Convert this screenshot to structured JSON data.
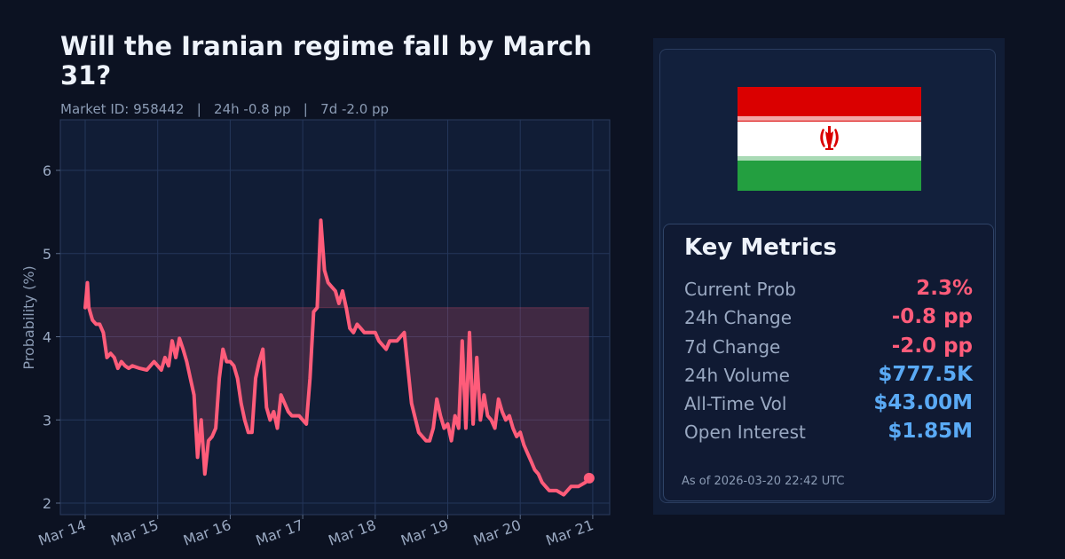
{
  "header": {
    "title": "Will the Iranian regime fall by March 31?",
    "subtitle": "Market ID: 958442   |   24h -0.8 pp   |   7d -2.0 pp"
  },
  "chart": {
    "ylabel": "Probability (%)",
    "yticks": [
      "2",
      "3",
      "4",
      "5",
      "6"
    ],
    "xticks": [
      "Mar 14",
      "Mar 15",
      "Mar 16",
      "Mar 17",
      "Mar 18",
      "Mar 19",
      "Mar 20",
      "Mar 21"
    ]
  },
  "metrics": {
    "title": "Key Metrics",
    "rows": [
      {
        "label": "Current Prob",
        "value": "2.3%",
        "color": "#ff5c7a"
      },
      {
        "label": "24h Change",
        "value": "-0.8 pp",
        "color": "#ff5c7a"
      },
      {
        "label": "7d Change",
        "value": "-2.0 pp",
        "color": "#ff5c7a"
      },
      {
        "label": "24h Volume",
        "value": "$777.5K",
        "color": "#5aaaf5"
      },
      {
        "label": "All-Time Vol",
        "value": "$43.00M",
        "color": "#5aaaf5"
      },
      {
        "label": "Open Interest",
        "value": "$1.85M",
        "color": "#5aaaf5"
      }
    ],
    "as_of": "As of 2026-03-20 22:42 UTC"
  },
  "flag": {
    "name": "Iran",
    "colors": [
      "#da0000",
      "#ffffff",
      "#239f40"
    ]
  },
  "chart_data": {
    "type": "line",
    "title": "Will the Iranian regime fall by March 31?",
    "xlabel": "",
    "ylabel": "Probability (%)",
    "ylim": [
      1.9,
      6.6
    ],
    "yticks": [
      2,
      3,
      4,
      5,
      6
    ],
    "xticks": [
      "Mar 14",
      "Mar 15",
      "Mar 16",
      "Mar 17",
      "Mar 18",
      "Mar 19",
      "Mar 20",
      "Mar 21"
    ],
    "grid": true,
    "reference_level": 4.35,
    "line_color": "#ff5c7a",
    "series": [
      {
        "name": "Probability",
        "x_days_from_mar14": [
          0.0,
          0.03,
          0.05,
          0.1,
          0.15,
          0.2,
          0.25,
          0.3,
          0.35,
          0.4,
          0.45,
          0.5,
          0.55,
          0.6,
          0.65,
          0.75,
          0.85,
          0.95,
          1.05,
          1.1,
          1.15,
          1.2,
          1.25,
          1.3,
          1.35,
          1.4,
          1.45,
          1.5,
          1.55,
          1.6,
          1.65,
          1.7,
          1.75,
          1.8,
          1.85,
          1.9,
          1.95,
          2.0,
          2.05,
          2.1,
          2.15,
          2.2,
          2.25,
          2.3,
          2.35,
          2.4,
          2.45,
          2.5,
          2.55,
          2.6,
          2.65,
          2.7,
          2.75,
          2.8,
          2.85,
          2.9,
          2.95,
          3.0,
          3.05,
          3.1,
          3.15,
          3.2,
          3.25,
          3.3,
          3.35,
          3.4,
          3.45,
          3.5,
          3.55,
          3.6,
          3.65,
          3.7,
          3.75,
          3.8,
          3.85,
          3.9,
          3.95,
          4.0,
          4.05,
          4.1,
          4.15,
          4.2,
          4.3,
          4.4,
          4.5,
          4.6,
          4.7,
          4.75,
          4.8,
          4.85,
          4.9,
          4.95,
          5.0,
          5.05,
          5.1,
          5.15,
          5.2,
          5.25,
          5.3,
          5.35,
          5.4,
          5.45,
          5.5,
          5.55,
          5.6,
          5.65,
          5.7,
          5.75,
          5.8,
          5.85,
          5.9,
          5.95,
          6.0,
          6.05,
          6.1,
          6.15,
          6.2,
          6.25,
          6.3,
          6.35,
          6.4,
          6.5,
          6.6,
          6.7,
          6.8,
          6.9,
          6.95
        ],
        "values": [
          4.35,
          4.65,
          4.35,
          4.2,
          4.15,
          4.15,
          4.05,
          3.75,
          3.8,
          3.75,
          3.62,
          3.7,
          3.65,
          3.62,
          3.65,
          3.62,
          3.6,
          3.7,
          3.6,
          3.75,
          3.65,
          3.95,
          3.75,
          3.98,
          3.85,
          3.7,
          3.5,
          3.3,
          2.55,
          3.0,
          2.35,
          2.75,
          2.8,
          2.9,
          3.5,
          3.85,
          3.7,
          3.7,
          3.65,
          3.5,
          3.2,
          3.0,
          2.85,
          2.85,
          3.5,
          3.7,
          3.85,
          3.15,
          3.0,
          3.1,
          2.9,
          3.3,
          3.2,
          3.1,
          3.05,
          3.05,
          3.05,
          3.0,
          2.95,
          3.5,
          4.3,
          4.35,
          5.4,
          4.8,
          4.65,
          4.6,
          4.55,
          4.4,
          4.55,
          4.35,
          4.1,
          4.05,
          4.15,
          4.1,
          4.05,
          4.05,
          4.05,
          4.05,
          3.95,
          3.9,
          3.85,
          3.95,
          3.95,
          4.05,
          3.2,
          2.85,
          2.75,
          2.75,
          2.9,
          3.25,
          3.05,
          2.9,
          2.95,
          2.75,
          3.05,
          2.9,
          3.95,
          2.9,
          4.05,
          2.95,
          3.75,
          3.0,
          3.3,
          3.05,
          3.0,
          2.9,
          3.25,
          3.1,
          3.0,
          3.05,
          2.9,
          2.8,
          2.85,
          2.7,
          2.6,
          2.5,
          2.4,
          2.35,
          2.25,
          2.2,
          2.15,
          2.15,
          2.1,
          2.2,
          2.2,
          2.25,
          2.3
        ]
      }
    ]
  }
}
